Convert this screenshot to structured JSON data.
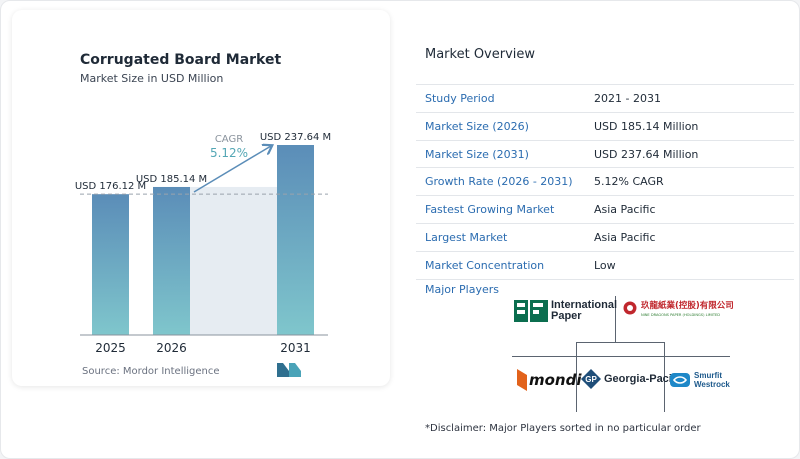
{
  "chart_data": {
    "type": "bar",
    "title": "Corrugated Board Market",
    "subtitle": "Market Size in USD Million",
    "categories": [
      "2025",
      "2026",
      "2031"
    ],
    "values": [
      176.12,
      185.14,
      237.64
    ],
    "data_labels": [
      "USD 176.12 M",
      "USD 185.14 M",
      "USD 237.64 M"
    ],
    "reference_line_value": 176.12,
    "ylim": [
      0,
      237.64
    ],
    "grid": false,
    "annotation": {
      "label": "CAGR",
      "value": "5.12%"
    }
  },
  "colors": {
    "bar_top": "#5b8db8",
    "bar_bottom": "#7fc6cc",
    "accent_teal": "#54a7b5",
    "band": "#e6ecf2",
    "label_blue": "#2b6cb0"
  },
  "source": "Source: Mordor Intelligence",
  "brand_logo_icon": "mordor-intelligence-logo-icon",
  "overview": {
    "title": "Market Overview",
    "rows": [
      {
        "label": "Study Period",
        "value": "2021 - 2031"
      },
      {
        "label": "Market Size (2026)",
        "value": "USD 185.14 Million"
      },
      {
        "label": "Market Size (2031)",
        "value": "USD 237.64 Million"
      },
      {
        "label": "Growth Rate (2026 - 2031)",
        "value": "5.12% CAGR"
      },
      {
        "label": "Fastest Growing Market",
        "value": "Asia Pacific"
      },
      {
        "label": "Largest Market",
        "value": "Asia Pacific"
      },
      {
        "label": "Market Concentration",
        "value": "Low"
      }
    ]
  },
  "players": {
    "title": "Major Players",
    "list": [
      {
        "name": "International Paper",
        "line1": "International",
        "line2": "Paper",
        "icon": "international-paper-logo-icon"
      },
      {
        "name": "Nine Dragons Paper",
        "cn": "玖龍紙業(控股)有限公司",
        "en": "NINE DRAGONS PAPER (HOLDINGS) LIMITED",
        "icon": "nine-dragons-logo-icon"
      },
      {
        "name": "mondi",
        "icon": "mondi-logo-icon"
      },
      {
        "name": "Georgia-Pacific",
        "mark": "GP",
        "icon": "georgia-pacific-logo-icon"
      },
      {
        "name": "Smurfit Westrock",
        "line1": "Smurfit",
        "line2": "Westrock",
        "icon": "smurfit-westrock-logo-icon"
      }
    ]
  },
  "disclaimer": "*Disclaimer: Major Players sorted in no particular order"
}
